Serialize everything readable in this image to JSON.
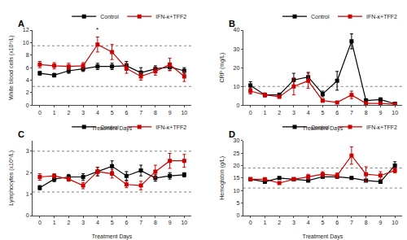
{
  "chart_data": [
    {
      "type": "line",
      "title": "A",
      "xlabel": "Treatment Days",
      "ylabel": "White blood cells (x10⁹/L)",
      "x": [
        0,
        1,
        2,
        3,
        4,
        5,
        6,
        7,
        8,
        9,
        10
      ],
      "series": [
        {
          "name": "Control",
          "color": "#000000",
          "marker": "square",
          "values": [
            5.1,
            4.8,
            5.5,
            5.8,
            6.2,
            6.2,
            6.3,
            5.2,
            5.8,
            6.1,
            5.5
          ],
          "errors": [
            0.3,
            0.3,
            0.4,
            0.4,
            0.5,
            0.5,
            0.7,
            0.8,
            0.5,
            0.5,
            0.5
          ]
        },
        {
          "name": "IFN-κ+TFF2",
          "color": "#cc0000",
          "marker": "square",
          "values": [
            6.5,
            6.3,
            6.2,
            6.3,
            9.7,
            8.5,
            5.9,
            4.6,
            5.4,
            6.5,
            4.6
          ],
          "errors": [
            0.5,
            0.5,
            0.5,
            0.5,
            1.2,
            1.2,
            0.8,
            0.6,
            0.6,
            1.0,
            0.8
          ]
        }
      ],
      "hlines": [
        9.5,
        3.0
      ],
      "annotations": [
        {
          "text": "*",
          "x": 4,
          "y": 11.2
        }
      ],
      "xlim": [
        -0.5,
        10.5
      ],
      "xticks": [
        0,
        1,
        2,
        3,
        4,
        5,
        6,
        7,
        8,
        9,
        10
      ],
      "ylim": [
        0,
        12
      ],
      "yticks": [
        0,
        2,
        4,
        6,
        8,
        10,
        12
      ],
      "grid": false,
      "legend": "upper right"
    },
    {
      "type": "line",
      "title": "B",
      "xlabel": "Treatment Days",
      "ylabel": "CRP (mg/L)",
      "x": [
        0,
        1,
        2,
        3,
        4,
        5,
        6,
        7,
        8,
        9,
        10
      ],
      "series": [
        {
          "name": "Control",
          "color": "#000000",
          "marker": "square",
          "values": [
            10.5,
            5.5,
            5.5,
            13.5,
            15.0,
            6.0,
            13.0,
            34.0,
            2.5,
            3.0,
            0.8
          ],
          "errors": [
            2.0,
            1.0,
            1.0,
            3.5,
            2.5,
            1.5,
            5.0,
            4.0,
            1.0,
            1.0,
            0.5
          ]
        },
        {
          "name": "IFN-κ+TFF2",
          "color": "#cc0000",
          "marker": "square",
          "values": [
            7.5,
            5.5,
            4.5,
            10.0,
            13.0,
            2.5,
            1.5,
            5.5,
            1.0,
            1.0,
            0.5
          ],
          "errors": [
            1.5,
            1.0,
            0.5,
            4.5,
            4.0,
            1.0,
            0.5,
            2.0,
            0.5,
            0.5,
            0.3
          ]
        }
      ],
      "hlines": [
        10.0
      ],
      "xlim": [
        -0.5,
        10.5
      ],
      "xticks": [
        0,
        1,
        2,
        3,
        4,
        5,
        6,
        7,
        8,
        9,
        10
      ],
      "ylim": [
        0,
        40
      ],
      "yticks": [
        0,
        10,
        20,
        30,
        40
      ],
      "grid": false,
      "legend": "upper right"
    },
    {
      "type": "line",
      "title": "C",
      "xlabel": "Treatment Days",
      "ylabel": "Lymphocytes (x10⁹/L)",
      "x": [
        0,
        1,
        2,
        3,
        4,
        5,
        6,
        7,
        8,
        9,
        10
      ],
      "series": [
        {
          "name": "Control",
          "color": "#000000",
          "marker": "square",
          "values": [
            1.3,
            1.7,
            1.8,
            1.8,
            2.05,
            2.3,
            1.85,
            2.1,
            1.75,
            1.85,
            1.9
          ],
          "errors": [
            0.1,
            0.12,
            0.12,
            0.15,
            0.2,
            0.25,
            0.2,
            0.25,
            0.15,
            0.15,
            0.1
          ]
        },
        {
          "name": "IFN-κ+TFF2",
          "color": "#cc0000",
          "marker": "square",
          "values": [
            1.8,
            1.85,
            1.7,
            1.4,
            2.05,
            1.95,
            1.45,
            1.4,
            2.05,
            2.55,
            2.55
          ],
          "errors": [
            0.15,
            0.1,
            0.1,
            0.15,
            0.2,
            0.2,
            0.15,
            0.2,
            0.3,
            0.35,
            0.3
          ]
        }
      ],
      "hlines": [
        3.0,
        1.1
      ],
      "xlim": [
        -0.5,
        10.5
      ],
      "xticks": [
        0,
        1,
        2,
        3,
        4,
        5,
        6,
        7,
        8,
        9,
        10
      ],
      "ylim": [
        0,
        3.5
      ],
      "yticks": [
        0,
        1,
        2,
        3
      ],
      "grid": false,
      "legend": "upper right"
    },
    {
      "type": "line",
      "title": "D",
      "xlabel": "Treatment Days",
      "ylabel": "Hemoglobin (g/L)",
      "x": [
        0,
        1,
        2,
        3,
        4,
        5,
        6,
        7,
        8,
        9,
        10
      ],
      "series": [
        {
          "name": "Control",
          "color": "#000000",
          "marker": "square",
          "values": [
            14.5,
            13.5,
            15.0,
            14.5,
            14.0,
            15.5,
            15.5,
            15.0,
            14.0,
            13.5,
            20.0
          ],
          "errors": [
            0.5,
            0.5,
            0.5,
            0.5,
            0.5,
            0.5,
            0.5,
            0.5,
            0.5,
            0.5,
            1.5
          ]
        },
        {
          "name": "IFN-κ+TFF2",
          "color": "#cc0000",
          "marker": "square",
          "values": [
            14.5,
            14.5,
            13.0,
            14.5,
            15.5,
            16.5,
            16.0,
            24.0,
            16.5,
            16.0,
            18.0
          ],
          "errors": [
            0.5,
            0.5,
            0.5,
            0.5,
            1.0,
            1.0,
            1.0,
            3.5,
            3.0,
            1.5,
            1.0
          ]
        }
      ],
      "hlines": [
        19.0,
        11.0
      ],
      "xlim": [
        -0.5,
        10.5
      ],
      "xticks": [
        0,
        1,
        2,
        3,
        4,
        5,
        6,
        7,
        8,
        9,
        10
      ],
      "ylim": [
        0,
        30
      ],
      "yticks": [
        0,
        5,
        10,
        15,
        20,
        25,
        30
      ],
      "grid": false,
      "legend": "upper right"
    }
  ]
}
